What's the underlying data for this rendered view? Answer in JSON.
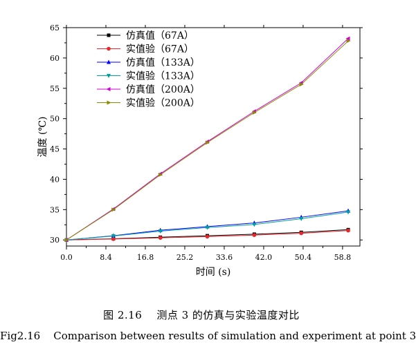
{
  "caption": {
    "cn": "图 2.16    测点 3 的仿真与实验温度对比",
    "en": "Fig2.16    Comparison between results of simulation and experiment at point 3"
  },
  "chart_data": {
    "type": "line",
    "xlabel": "时间 (s)",
    "ylabel": "温度 (℃)",
    "xlim": [
      0,
      62.5
    ],
    "ylim": [
      29,
      65
    ],
    "xticks": [
      0.0,
      8.4,
      16.8,
      25.2,
      33.6,
      42.0,
      50.4,
      58.8
    ],
    "xtick_labels": [
      "0.0",
      "8.4",
      "16.8",
      "25.2",
      "33.6",
      "42.0",
      "50.4",
      "58.8"
    ],
    "yticks": [
      30,
      35,
      40,
      45,
      50,
      55,
      60,
      65
    ],
    "ytick_labels": [
      "30",
      "35",
      "40",
      "45",
      "50",
      "55",
      "60",
      "65"
    ],
    "grid": false,
    "legend_position": "top-left",
    "x": [
      0,
      10,
      20,
      30,
      40,
      50,
      60
    ],
    "series": [
      {
        "name": "仿真值（67A）",
        "marker": "square",
        "color": "#000000",
        "values": [
          30.0,
          30.2,
          30.45,
          30.7,
          30.95,
          31.25,
          31.7
        ]
      },
      {
        "name": "实值验（67A）",
        "marker": "circle",
        "color": "#e8262b",
        "values": [
          30.0,
          30.15,
          30.35,
          30.55,
          30.8,
          31.1,
          31.55
        ]
      },
      {
        "name": "仿真值（133A）",
        "marker": "triangle-up",
        "color": "#0000ff",
        "values": [
          30.0,
          30.7,
          31.6,
          32.2,
          32.8,
          33.75,
          34.8
        ]
      },
      {
        "name": "实值验（133A）",
        "marker": "triangle-down",
        "color": "#00a0a0",
        "values": [
          30.0,
          30.65,
          31.45,
          32.05,
          32.55,
          33.5,
          34.6
        ]
      },
      {
        "name": "仿真值（200A）",
        "marker": "triangle-left",
        "color": "#d000d0",
        "values": [
          30.0,
          35.1,
          40.9,
          46.2,
          51.2,
          55.9,
          63.2
        ]
      },
      {
        "name": "实值验（200A）",
        "marker": "triangle-right",
        "color": "#8a8a00",
        "values": [
          30.0,
          35.0,
          40.75,
          46.05,
          51.0,
          55.65,
          62.8
        ]
      }
    ]
  }
}
